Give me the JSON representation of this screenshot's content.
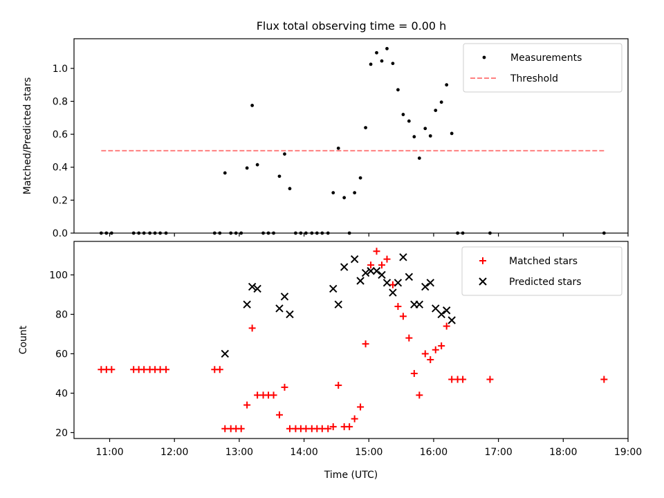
{
  "figure": {
    "title": "Flux total observing time = 0.00 h"
  },
  "chart_data": [
    {
      "type": "scatter",
      "title": "Flux total observing time = 0.00 h",
      "xlabel": "",
      "ylabel": "Matched/Predicted stars",
      "x_axis": "time (hours UTC)",
      "xlim": [
        10.45,
        19.0
      ],
      "ylim": [
        0.0,
        1.18
      ],
      "yticks": [
        0.0,
        0.2,
        0.4,
        0.6,
        0.8,
        1.0
      ],
      "ytick_labels": [
        "0.0",
        "0.2",
        "0.4",
        "0.6",
        "0.8",
        "1.0"
      ],
      "xticks": [
        11,
        12,
        13,
        14,
        15,
        16,
        17,
        18,
        19
      ],
      "show_xtick_labels": false,
      "grid": false,
      "legend": {
        "location": "upper right",
        "entries": [
          "Measurements",
          "Threshold"
        ]
      },
      "series": [
        {
          "name": "Measurements",
          "marker": "dot",
          "color": "#000000",
          "points": [
            [
              10.87,
              0
            ],
            [
              10.95,
              0
            ],
            [
              11.03,
              0
            ],
            [
              11.37,
              0
            ],
            [
              11.45,
              0
            ],
            [
              11.53,
              0
            ],
            [
              11.62,
              0
            ],
            [
              11.7,
              0
            ],
            [
              11.78,
              0
            ],
            [
              11.87,
              0
            ],
            [
              12.62,
              0
            ],
            [
              12.7,
              0
            ],
            [
              12.78,
              0.365
            ],
            [
              12.87,
              0
            ],
            [
              12.95,
              0
            ],
            [
              13.03,
              0
            ],
            [
              13.12,
              0.395
            ],
            [
              13.2,
              0.775
            ],
            [
              13.28,
              0.415
            ],
            [
              13.37,
              0
            ],
            [
              13.45,
              0
            ],
            [
              13.53,
              0
            ],
            [
              13.62,
              0.345
            ],
            [
              13.7,
              0.48
            ],
            [
              13.78,
              0.27
            ],
            [
              13.87,
              0
            ],
            [
              13.95,
              0
            ],
            [
              14.03,
              0
            ],
            [
              14.12,
              0
            ],
            [
              14.2,
              0
            ],
            [
              14.28,
              0
            ],
            [
              14.37,
              0
            ],
            [
              14.45,
              0.245
            ],
            [
              14.53,
              0.515
            ],
            [
              14.62,
              0.215
            ],
            [
              14.7,
              0
            ],
            [
              14.78,
              0.245
            ],
            [
              14.87,
              0.335
            ],
            [
              14.95,
              0.64
            ],
            [
              15.03,
              1.025
            ],
            [
              15.12,
              1.095
            ],
            [
              15.2,
              1.045
            ],
            [
              15.28,
              1.12
            ],
            [
              15.37,
              1.03
            ],
            [
              15.45,
              0.87
            ],
            [
              15.53,
              0.72
            ],
            [
              15.62,
              0.68
            ],
            [
              15.7,
              0.585
            ],
            [
              15.78,
              0.455
            ],
            [
              15.87,
              0.635
            ],
            [
              15.95,
              0.59
            ],
            [
              16.03,
              0.745
            ],
            [
              16.12,
              0.795
            ],
            [
              16.2,
              0.9
            ],
            [
              16.28,
              0.605
            ],
            [
              16.37,
              0
            ],
            [
              16.45,
              0
            ],
            [
              16.87,
              0
            ],
            [
              18.63,
              0
            ]
          ]
        },
        {
          "name": "Threshold",
          "style": "dashed",
          "color": "#ff7f7f",
          "points": [
            [
              10.87,
              0.5
            ],
            [
              18.63,
              0.5
            ]
          ]
        }
      ]
    },
    {
      "type": "scatter",
      "title": "",
      "xlabel": "Time (UTC)",
      "ylabel": "Count",
      "xlim": [
        10.45,
        19.0
      ],
      "ylim": [
        17,
        117
      ],
      "yticks": [
        20,
        40,
        60,
        80,
        100
      ],
      "ytick_labels": [
        "20",
        "40",
        "60",
        "80",
        "100"
      ],
      "xticks": [
        11,
        12,
        13,
        14,
        15,
        16,
        17,
        18,
        19
      ],
      "xtick_labels": [
        "11:00",
        "12:00",
        "13:00",
        "14:00",
        "15:00",
        "16:00",
        "17:00",
        "18:00",
        "19:00"
      ],
      "grid": false,
      "legend": {
        "location": "upper right",
        "entries": [
          "Matched stars",
          "Predicted stars"
        ]
      },
      "series": [
        {
          "name": "Matched stars",
          "marker": "plus",
          "color": "#ff0000",
          "points": [
            [
              10.87,
              52
            ],
            [
              10.95,
              52
            ],
            [
              11.03,
              52
            ],
            [
              11.37,
              52
            ],
            [
              11.45,
              52
            ],
            [
              11.53,
              52
            ],
            [
              11.62,
              52
            ],
            [
              11.7,
              52
            ],
            [
              11.78,
              52
            ],
            [
              11.87,
              52
            ],
            [
              12.62,
              52
            ],
            [
              12.7,
              52
            ],
            [
              12.78,
              22
            ],
            [
              12.87,
              22
            ],
            [
              12.95,
              22
            ],
            [
              13.03,
              22
            ],
            [
              13.12,
              34
            ],
            [
              13.2,
              73
            ],
            [
              13.28,
              39
            ],
            [
              13.37,
              39
            ],
            [
              13.45,
              39
            ],
            [
              13.53,
              39
            ],
            [
              13.62,
              29
            ],
            [
              13.7,
              43
            ],
            [
              13.78,
              22
            ],
            [
              13.87,
              22
            ],
            [
              13.95,
              22
            ],
            [
              14.03,
              22
            ],
            [
              14.12,
              22
            ],
            [
              14.2,
              22
            ],
            [
              14.28,
              22
            ],
            [
              14.37,
              22
            ],
            [
              14.45,
              23
            ],
            [
              14.53,
              44
            ],
            [
              14.62,
              23
            ],
            [
              14.7,
              23
            ],
            [
              14.78,
              27
            ],
            [
              14.87,
              33
            ],
            [
              14.95,
              65
            ],
            [
              15.03,
              105
            ],
            [
              15.12,
              112
            ],
            [
              15.2,
              105
            ],
            [
              15.28,
              108
            ],
            [
              15.37,
              95
            ],
            [
              15.45,
              84
            ],
            [
              15.53,
              79
            ],
            [
              15.62,
              68
            ],
            [
              15.7,
              50
            ],
            [
              15.78,
              39
            ],
            [
              15.87,
              60
            ],
            [
              15.95,
              57
            ],
            [
              16.03,
              62
            ],
            [
              16.12,
              64
            ],
            [
              16.2,
              74
            ],
            [
              16.28,
              47
            ],
            [
              16.37,
              47
            ],
            [
              16.45,
              47
            ],
            [
              16.87,
              47
            ],
            [
              18.63,
              47
            ]
          ]
        },
        {
          "name": "Predicted stars",
          "marker": "x",
          "color": "#000000",
          "points": [
            [
              12.78,
              60
            ],
            [
              13.12,
              85
            ],
            [
              13.2,
              94
            ],
            [
              13.28,
              93
            ],
            [
              13.62,
              83
            ],
            [
              13.7,
              89
            ],
            [
              13.78,
              80
            ],
            [
              14.45,
              93
            ],
            [
              14.53,
              85
            ],
            [
              14.62,
              104
            ],
            [
              14.78,
              108
            ],
            [
              14.87,
              97
            ],
            [
              14.95,
              101
            ],
            [
              15.03,
              102
            ],
            [
              15.12,
              102
            ],
            [
              15.2,
              100
            ],
            [
              15.28,
              96
            ],
            [
              15.37,
              91
            ],
            [
              15.45,
              96
            ],
            [
              15.53,
              109
            ],
            [
              15.62,
              99
            ],
            [
              15.7,
              85
            ],
            [
              15.78,
              85
            ],
            [
              15.87,
              94
            ],
            [
              15.95,
              96
            ],
            [
              16.03,
              83
            ],
            [
              16.12,
              80
            ],
            [
              16.2,
              82
            ],
            [
              16.28,
              77
            ]
          ]
        }
      ]
    }
  ]
}
